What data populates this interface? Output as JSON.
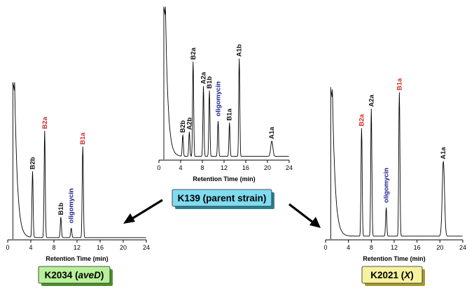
{
  "chart_data": [
    {
      "type": "line",
      "strain": "K139 (parent strain)",
      "xlabel": "Retention Time (min)",
      "xlim": [
        0,
        24
      ],
      "xticks": [
        "0",
        "4",
        "8",
        "12",
        "16",
        "20",
        "24"
      ],
      "ylim": [
        0,
        100
      ],
      "baseline": 2,
      "peaks": [
        {
          "label": "B2b",
          "x": 4.4,
          "y": 14,
          "color": "#111111"
        },
        {
          "label": "A2b",
          "x": 5.6,
          "y": 16,
          "color": "#111111"
        },
        {
          "label": "B2a",
          "x": 6.3,
          "y": 62,
          "color": "#111111"
        },
        {
          "label": "A2a",
          "x": 8.2,
          "y": 46,
          "color": "#111111"
        },
        {
          "label": "B1b",
          "x": 9.3,
          "y": 43,
          "color": "#111111"
        },
        {
          "label": "oligomycin",
          "x": 10.9,
          "y": 23,
          "color": "#1a1a8c"
        },
        {
          "label": "B1a",
          "x": 13.0,
          "y": 22,
          "color": "#111111"
        },
        {
          "label": "A1b",
          "x": 14.8,
          "y": 64,
          "color": "#111111"
        },
        {
          "label": "A1a",
          "x": 20.8,
          "y": 10,
          "color": "#111111"
        }
      ]
    },
    {
      "type": "line",
      "strain": "K2034 (aveD)",
      "xlabel": "Retention Time (min)",
      "xlim": [
        0,
        24
      ],
      "xticks": [
        "0",
        "4",
        "8",
        "12",
        "16",
        "20",
        "24"
      ],
      "ylim": [
        0,
        100
      ],
      "baseline": 1,
      "peaks": [
        {
          "label": "B2b",
          "x": 4.3,
          "y": 42,
          "color": "#111111"
        },
        {
          "label": "B2a",
          "x": 6.4,
          "y": 68,
          "color": "#d42a2a"
        },
        {
          "label": "B1b",
          "x": 9.2,
          "y": 13,
          "color": "#111111"
        },
        {
          "label": "oligomycin",
          "x": 11.0,
          "y": 6,
          "color": "#1a1a8c"
        },
        {
          "label": "B1a",
          "x": 13.0,
          "y": 58,
          "color": "#d42a2a"
        }
      ]
    },
    {
      "type": "line",
      "strain": "K2021 (X)",
      "xlabel": "Retention Time (min)",
      "xlim": [
        0,
        24
      ],
      "xticks": [
        "0",
        "4",
        "8",
        "12",
        "16",
        "20",
        "24"
      ],
      "ylim": [
        0,
        100
      ],
      "baseline": 2,
      "peaks": [
        {
          "label": "B2a",
          "x": 6.3,
          "y": 72,
          "color": "#d42a2a"
        },
        {
          "label": "A2a",
          "x": 8.0,
          "y": 85,
          "color": "#111111"
        },
        {
          "label": "oligomycin",
          "x": 10.6,
          "y": 19,
          "color": "#1a1a8c"
        },
        {
          "label": "B1a",
          "x": 12.9,
          "y": 96,
          "color": "#d42a2a"
        },
        {
          "label": "A1a",
          "x": 20.6,
          "y": 50,
          "color": "#111111"
        }
      ]
    }
  ],
  "captions": {
    "center": {
      "text": "K139 (parent strain)",
      "bg": "#7fdcf0",
      "shadow": "#2f7f8f"
    },
    "left": {
      "prefix": "K2034 (",
      "italic": "aveD",
      "suffix": ")",
      "bg": "#b8f09a",
      "shadow": "#4c8f2f"
    },
    "right": {
      "prefix": "K2021 (",
      "italic": "X",
      "suffix": ")",
      "bg": "#f6f2a0",
      "shadow": "#a59a30"
    }
  }
}
